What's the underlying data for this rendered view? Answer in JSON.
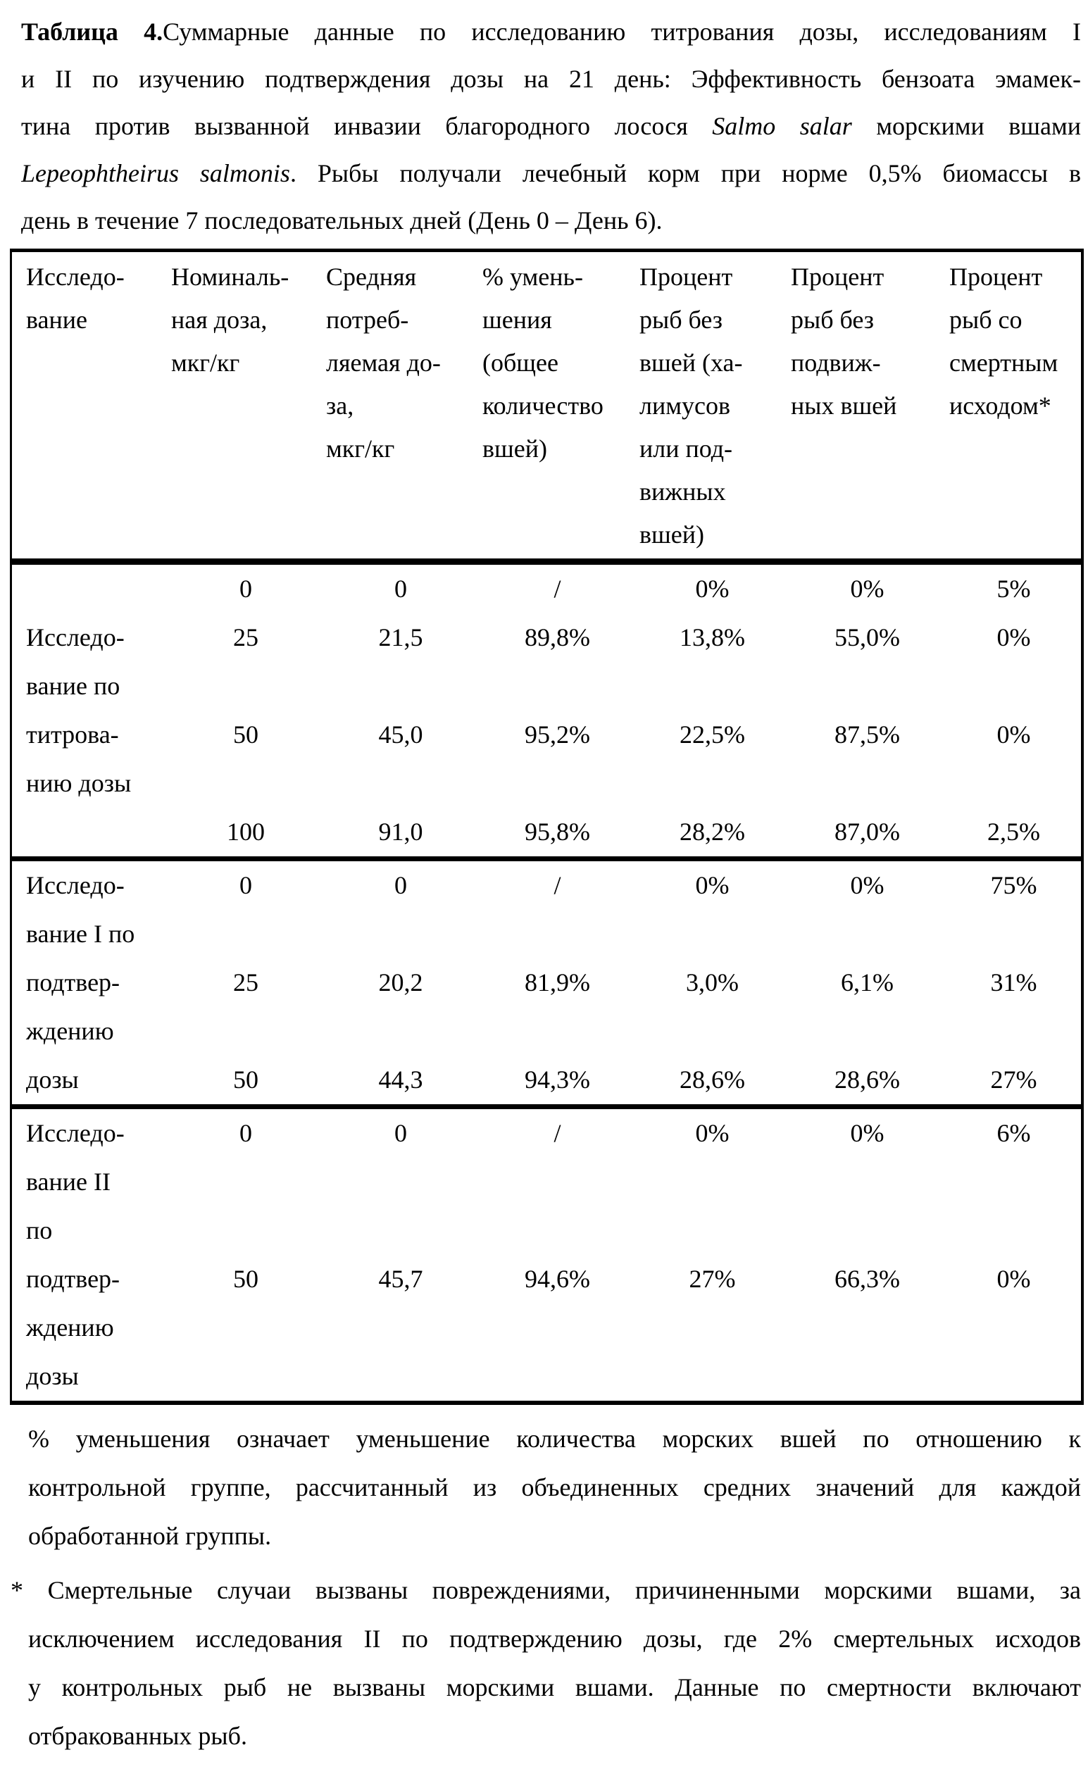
{
  "page": {
    "title": {
      "lines": [
        {
          "segments": [
            {
              "text": "Таблица 4.",
              "bold": true
            },
            {
              "text": "Суммарные данные по исследованию титрования дозы, исследованиям I"
            }
          ]
        },
        {
          "segments": [
            {
              "text": "и II  по изучению подтверждения дозы на 21 день: Эффективность бензоата эмамек-"
            }
          ]
        },
        {
          "segments": [
            {
              "text": "тина против вызванной инвазии благородного лосося "
            },
            {
              "text": "Salmo salar",
              "italic": true
            },
            {
              "text": " морскими вшами"
            }
          ]
        },
        {
          "segments": [
            {
              "text": "Lepeophtheirus salmonis",
              "italic": true
            },
            {
              "text": ". Рыбы получали лечебный корм при норме 0,5% биомассы в"
            }
          ]
        },
        {
          "segments": [
            {
              "text": "день в течение 7 последовательных дней (День 0 – День 6)."
            }
          ]
        }
      ]
    },
    "table": {
      "header_columns": [
        [
          "Исследо-",
          "вание"
        ],
        [
          "Номиналь-",
          "ная доза,",
          "мкг/кг"
        ],
        [
          "Средняя",
          "потреб-",
          "ляемая до-",
          "за,",
          "мкг/кг"
        ],
        [
          "% умень-",
          "шения",
          "(общее",
          "количество",
          "вшей)"
        ],
        [
          "Процент",
          "рыб без",
          "вшей (ха-",
          "лимусов",
          "или под-",
          "вижных",
          "вшей)"
        ],
        [
          "Процент",
          "рыб без",
          "подвиж-",
          "ных вшей"
        ],
        [
          "Процент",
          "рыб со",
          "смертным",
          "исходом*"
        ]
      ],
      "sections": [
        {
          "name": "dose-titration-study",
          "lines": [
            [
              "",
              "0",
              "0",
              "/",
              "0%",
              "0%",
              "5%"
            ],
            [
              "Исследо-",
              "25",
              "21,5",
              "89,8%",
              "13,8%",
              "55,0%",
              "0%"
            ],
            [
              "вание по",
              "",
              "",
              "",
              "",
              "",
              ""
            ],
            [
              "титрова-",
              "50",
              "45,0",
              "95,2%",
              "22,5%",
              "87,5%",
              "0%"
            ],
            [
              "нию дозы",
              "",
              "",
              "",
              "",
              "",
              ""
            ],
            [
              "",
              "100",
              "91,0",
              "95,8%",
              "28,2%",
              "87,0%",
              "2,5%"
            ]
          ]
        },
        {
          "name": "dose-confirmation-study-I",
          "lines": [
            [
              "Исследо-",
              "0",
              "0",
              "/",
              "0%",
              "0%",
              "75%"
            ],
            [
              "вание I по",
              "",
              "",
              "",
              "",
              "",
              ""
            ],
            [
              "подтвер-",
              "25",
              "20,2",
              "81,9%",
              "3,0%",
              "6,1%",
              "31%"
            ],
            [
              "ждению",
              "",
              "",
              "",
              "",
              "",
              ""
            ],
            [
              "дозы",
              "50",
              "44,3",
              "94,3%",
              "28,6%",
              "28,6%",
              "27%"
            ]
          ]
        },
        {
          "name": "dose-confirmation-study-II",
          "lines": [
            [
              "Исследо-",
              "0",
              "0",
              "/",
              "0%",
              "0%",
              "6%"
            ],
            [
              "вание II",
              "",
              "",
              "",
              "",
              "",
              ""
            ],
            [
              "по",
              "",
              "",
              "",
              "",
              "",
              ""
            ],
            [
              "подтвер-",
              "50",
              "45,7",
              "94,6%",
              "27%",
              "66,3%",
              "0%"
            ],
            [
              "ждению",
              "",
              "",
              "",
              "",
              "",
              ""
            ],
            [
              "дозы",
              "",
              "",
              "",
              "",
              "",
              ""
            ]
          ]
        }
      ]
    },
    "footnotes": [
      {
        "name": "footnote-percent-reduction",
        "hang_first": false,
        "lines": [
          "% уменьшения означает уменьшение количества морских вшей по отношению к",
          "контрольной группе, рассчитанный из объединенных средних значений для каждой",
          "обработанной группы."
        ]
      },
      {
        "name": "footnote-mortality",
        "hang_first": true,
        "lines": [
          "* Смертельные случаи вызваны повреждениями, причиненными морскими вшами, за",
          "исключением исследования II по подтверждению дозы, где 2% смертельных исходов",
          "у контрольных рыб не вызваны морскими вшами. Данные по смертности включают",
          "отбракованных рыб."
        ]
      }
    ]
  }
}
